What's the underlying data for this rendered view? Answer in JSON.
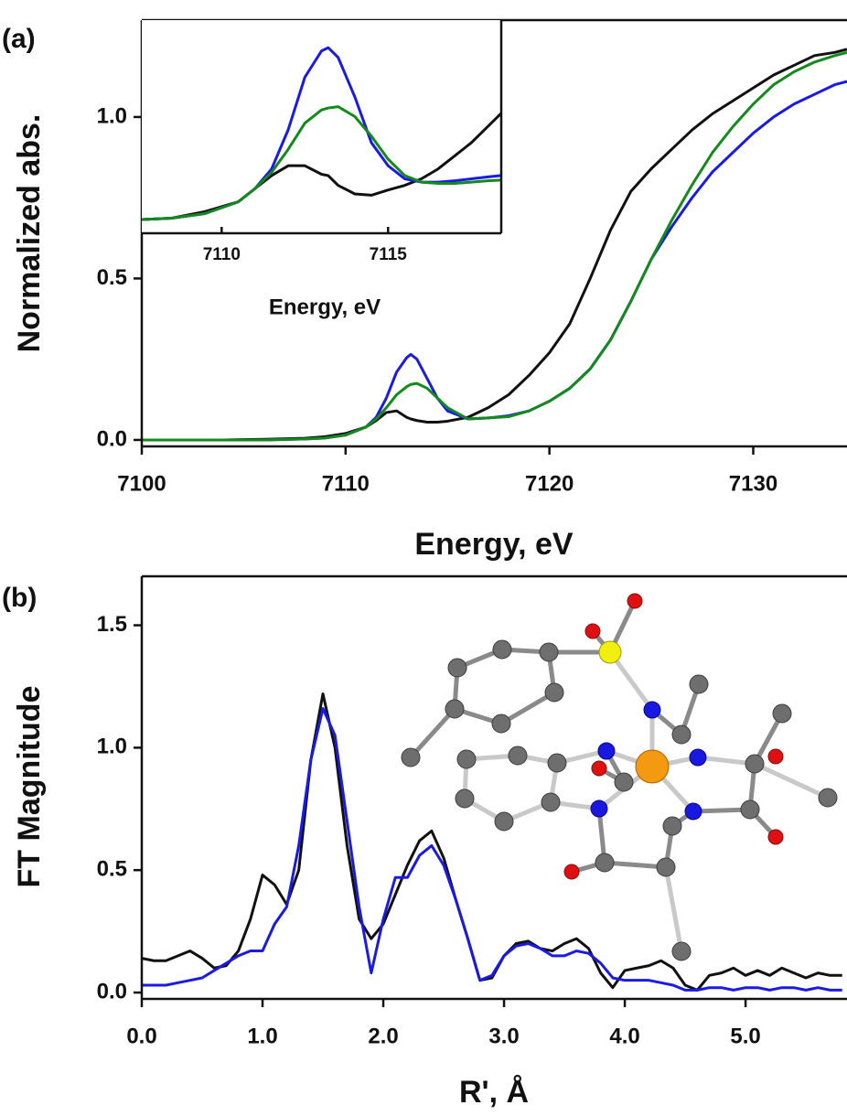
{
  "chart_data": [
    {
      "type": "line",
      "panel_label": "(a)",
      "xlabel": "Energy, eV",
      "ylabel": "Normalized abs.",
      "x": [
        7100,
        7104,
        7106,
        7108,
        7109,
        7110,
        7111,
        7111.5,
        7112,
        7112.5,
        7113,
        7113.2,
        7113.5,
        7114,
        7114.5,
        7115,
        7116,
        7117,
        7118,
        7119,
        7120,
        7121,
        7122,
        7123,
        7124,
        7125,
        7126,
        7127,
        7128,
        7129,
        7130,
        7131,
        7132,
        7133,
        7134,
        7134.6
      ],
      "series": [
        {
          "color": "#111111",
          "values": [
            0,
            0,
            0.002,
            0.005,
            0.01,
            0.02,
            0.04,
            0.06,
            0.085,
            0.09,
            0.07,
            0.065,
            0.06,
            0.055,
            0.055,
            0.058,
            0.07,
            0.1,
            0.14,
            0.2,
            0.27,
            0.36,
            0.5,
            0.65,
            0.77,
            0.84,
            0.9,
            0.96,
            1.01,
            1.05,
            1.09,
            1.13,
            1.16,
            1.19,
            1.2,
            1.21
          ]
        },
        {
          "color": "#1a1ae6",
          "values": [
            0,
            0,
            0,
            0.003,
            0.006,
            0.015,
            0.04,
            0.07,
            0.13,
            0.21,
            0.255,
            0.265,
            0.25,
            0.19,
            0.13,
            0.09,
            0.065,
            0.068,
            0.075,
            0.09,
            0.12,
            0.16,
            0.22,
            0.31,
            0.43,
            0.56,
            0.66,
            0.75,
            0.83,
            0.89,
            0.95,
            1.0,
            1.04,
            1.07,
            1.1,
            1.11
          ]
        },
        {
          "color": "#14891c",
          "values": [
            0,
            0,
            0,
            0.003,
            0.006,
            0.015,
            0.04,
            0.065,
            0.1,
            0.14,
            0.165,
            0.172,
            0.175,
            0.16,
            0.13,
            0.1,
            0.065,
            0.068,
            0.072,
            0.09,
            0.12,
            0.16,
            0.22,
            0.31,
            0.43,
            0.56,
            0.68,
            0.79,
            0.89,
            0.97,
            1.04,
            1.1,
            1.14,
            1.17,
            1.19,
            1.2
          ]
        }
      ],
      "xlim": [
        7100,
        7134.6
      ],
      "ylim": [
        -0.02,
        1.3
      ],
      "xticks": [
        7100,
        7110,
        7120,
        7130
      ],
      "yticks": [
        {
          "value": 0,
          "label": "0.0"
        },
        {
          "value": 0.5,
          "label": "0.5"
        },
        {
          "value": 1,
          "label": "1.0"
        }
      ]
    },
    {
      "type": "line",
      "xlabel": "Energy, eV",
      "x": [
        7107.6,
        7108.5,
        7109.5,
        7110.5,
        7111,
        7111.5,
        7112,
        7112.5,
        7113,
        7113.2,
        7113.5,
        7114,
        7114.5,
        7115,
        7115.5,
        7116,
        7116.5,
        7117,
        7117.5,
        7118,
        7118.4
      ],
      "series": [
        {
          "color": "#111111",
          "values": [
            0.003,
            0.005,
            0.015,
            0.03,
            0.05,
            0.07,
            0.085,
            0.085,
            0.072,
            0.07,
            0.055,
            0.042,
            0.04,
            0.048,
            0.055,
            0.065,
            0.08,
            0.1,
            0.12,
            0.145,
            0.165
          ]
        },
        {
          "color": "#1a1ae6",
          "values": [
            0.003,
            0.005,
            0.012,
            0.03,
            0.05,
            0.08,
            0.14,
            0.22,
            0.26,
            0.265,
            0.25,
            0.19,
            0.12,
            0.085,
            0.065,
            0.06,
            0.06,
            0.062,
            0.065,
            0.068,
            0.07
          ]
        },
        {
          "color": "#14891c",
          "values": [
            0.003,
            0.005,
            0.012,
            0.03,
            0.05,
            0.075,
            0.11,
            0.15,
            0.17,
            0.173,
            0.175,
            0.16,
            0.13,
            0.095,
            0.07,
            0.06,
            0.058,
            0.058,
            0.06,
            0.062,
            0.063
          ]
        }
      ],
      "xlim": [
        7107.6,
        7118.4
      ],
      "ylim": [
        -0.018,
        0.307
      ],
      "xticks": [
        7110,
        7115
      ]
    },
    {
      "type": "line",
      "panel_label": "(b)",
      "xlabel": "R', Å",
      "ylabel": "FT Magnitude",
      "x": [
        0,
        0.1,
        0.2,
        0.3,
        0.4,
        0.5,
        0.6,
        0.7,
        0.8,
        0.9,
        1,
        1.1,
        1.2,
        1.3,
        1.4,
        1.5,
        1.6,
        1.7,
        1.8,
        1.9,
        2,
        2.1,
        2.2,
        2.3,
        2.4,
        2.5,
        2.6,
        2.7,
        2.8,
        2.9,
        3,
        3.1,
        3.2,
        3.3,
        3.4,
        3.5,
        3.6,
        3.7,
        3.8,
        3.9,
        4,
        4.1,
        4.2,
        4.3,
        4.4,
        4.5,
        4.6,
        4.7,
        4.8,
        4.9,
        5,
        5.1,
        5.2,
        5.3,
        5.4,
        5.5,
        5.6,
        5.7,
        5.8
      ],
      "series": [
        {
          "color": "#111111",
          "values": [
            0.14,
            0.13,
            0.13,
            0.15,
            0.17,
            0.14,
            0.1,
            0.11,
            0.17,
            0.3,
            0.48,
            0.44,
            0.36,
            0.5,
            0.95,
            1.22,
            1.0,
            0.6,
            0.3,
            0.22,
            0.28,
            0.4,
            0.52,
            0.62,
            0.66,
            0.55,
            0.38,
            0.22,
            0.05,
            0.06,
            0.15,
            0.2,
            0.21,
            0.18,
            0.17,
            0.2,
            0.22,
            0.18,
            0.08,
            0.02,
            0.09,
            0.1,
            0.11,
            0.13,
            0.1,
            0.03,
            0.01,
            0.07,
            0.08,
            0.1,
            0.07,
            0.09,
            0.07,
            0.1,
            0.08,
            0.06,
            0.08,
            0.07,
            0.07
          ]
        },
        {
          "color": "#1a1ae6",
          "values": [
            0.03,
            0.03,
            0.03,
            0.04,
            0.05,
            0.06,
            0.09,
            0.12,
            0.15,
            0.17,
            0.17,
            0.28,
            0.35,
            0.6,
            0.95,
            1.16,
            1.05,
            0.7,
            0.35,
            0.08,
            0.3,
            0.47,
            0.47,
            0.56,
            0.6,
            0.52,
            0.38,
            0.22,
            0.05,
            0.07,
            0.15,
            0.19,
            0.2,
            0.18,
            0.15,
            0.15,
            0.17,
            0.16,
            0.12,
            0.06,
            0.05,
            0.05,
            0.05,
            0.04,
            0.03,
            0.01,
            0.01,
            0.02,
            0.02,
            0.01,
            0.02,
            0.02,
            0.01,
            0.02,
            0.02,
            0.01,
            0.02,
            0.01,
            0.01
          ]
        }
      ],
      "xlim": [
        0,
        5.84
      ],
      "ylim": [
        -0.026,
        1.7
      ],
      "xticks": [
        {
          "value": 0,
          "label": "0.0"
        },
        {
          "value": 1,
          "label": "1.0"
        },
        {
          "value": 2,
          "label": "2.0"
        },
        {
          "value": 3,
          "label": "3.0"
        },
        {
          "value": 4,
          "label": "4.0"
        },
        {
          "value": 5,
          "label": "5.0"
        }
      ],
      "yticks": [
        {
          "value": 0,
          "label": "0.0"
        },
        {
          "value": 0.5,
          "label": "0.5"
        },
        {
          "value": 1,
          "label": "1.0"
        },
        {
          "value": 1.5,
          "label": "1.5"
        }
      ]
    }
  ]
}
